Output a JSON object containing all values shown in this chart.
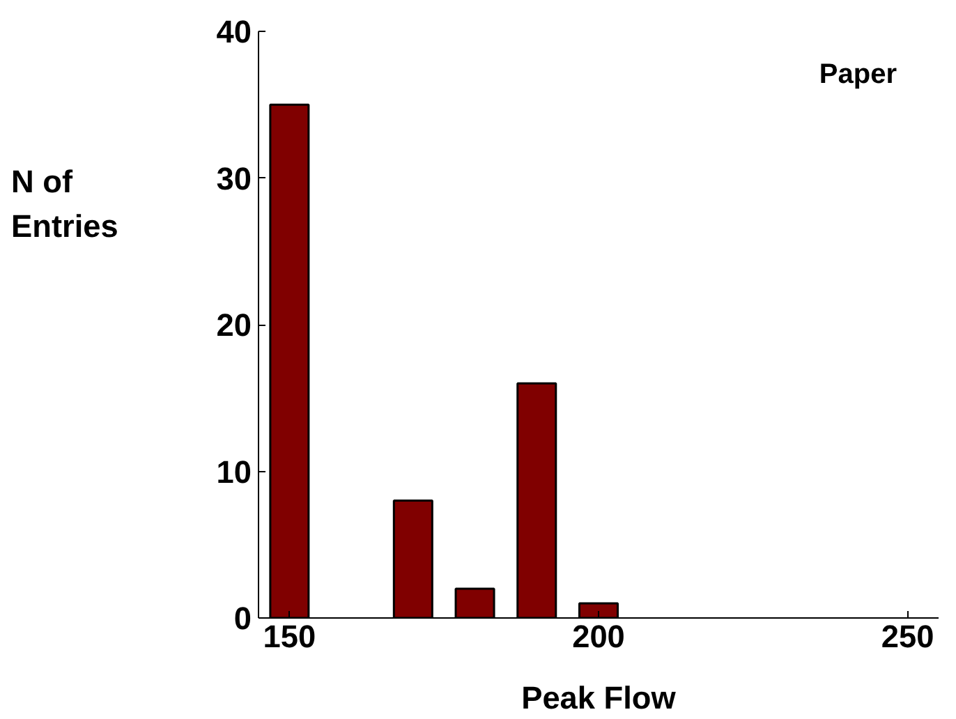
{
  "chart_data": {
    "type": "histogram",
    "xlabel": "Peak Flow",
    "ylabel": "N of\nEntries",
    "annotations": [
      "Paper"
    ],
    "bins": [
      145,
      155,
      165,
      175,
      185,
      195,
      205
    ],
    "values": [
      35,
      0,
      8,
      2,
      16,
      1
    ],
    "color": "#800000",
    "xlim": [
      145,
      255
    ],
    "ylim": [
      0,
      40
    ],
    "xticks": [
      150,
      200,
      250
    ],
    "yticks": [
      0,
      10,
      20,
      30,
      40
    ],
    "grid": false
  }
}
